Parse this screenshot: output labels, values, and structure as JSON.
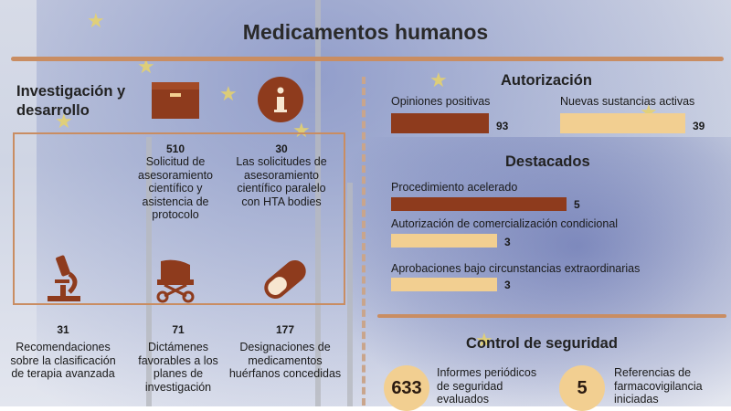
{
  "title": "Medicamentos humanos",
  "research": {
    "heading": "Investigación y desarrollo",
    "items": [
      {
        "value": "510",
        "text": "Solicitud de asesoramiento científico y asistencia de protocolo",
        "icon": "box-icon"
      },
      {
        "value": "30",
        "text": "Las solicitudes de asesoramiento científico paralelo con HTA bodies",
        "icon": "info-icon"
      },
      {
        "value": "31",
        "text": "Recomendaciones sobre la clasificación de terapia avanzada",
        "icon": "microscope-icon"
      },
      {
        "value": "71",
        "text": "Dictámenes favorables a los planes de investigación",
        "icon": "stroller-icon"
      },
      {
        "value": "177",
        "text": "Designaciones de medicamentos huérfanos concedidas",
        "icon": "pill-icon"
      }
    ]
  },
  "authorization": {
    "heading": "Autorización",
    "positive_label": "Opiniones positivas",
    "positive_value": 93,
    "new_label": "Nuevas sustancias activas",
    "new_value": 39
  },
  "highlights": {
    "heading": "Destacados",
    "items": [
      {
        "label": "Procedimiento acelerado",
        "value": 5
      },
      {
        "label": "Autorización de comercialización condicional",
        "value": 3
      },
      {
        "label": "Aprobaciones bajo circunstancias extraordinarias",
        "value": 3
      }
    ]
  },
  "safety": {
    "heading": "Control de seguridad",
    "items": [
      {
        "value": "633",
        "text": "Informes periódicos de seguridad evaluados"
      },
      {
        "value": "5",
        "text": "Referencias de farmacovigilancia iniciadas"
      }
    ]
  },
  "colors": {
    "dark": "#8e3b1d",
    "light": "#f2cf91",
    "accent": "#c98d62"
  }
}
